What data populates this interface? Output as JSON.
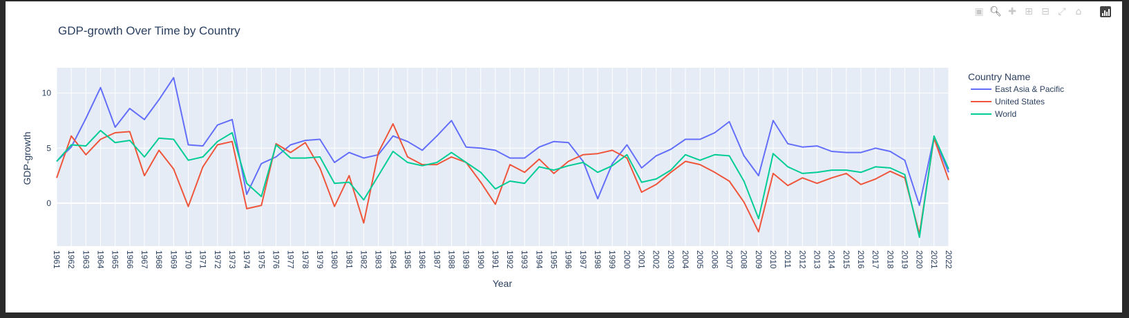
{
  "modebar": {
    "icons": [
      "camera-icon",
      "zoom-icon",
      "pan-icon",
      "zoom-in-icon",
      "zoom-out-icon",
      "autoscale-icon",
      "reset-icon",
      "plotly-logo-icon"
    ]
  },
  "chart_data": {
    "type": "line",
    "title": "GDP-growth Over Time by Country",
    "xlabel": "Year",
    "ylabel": "GDP-growth",
    "legend_title": "Country Name",
    "legend_position": "right",
    "grid": true,
    "ylim": [
      -3.9,
      12.3
    ],
    "yticks": [
      0,
      5,
      10
    ],
    "x": [
      1961,
      1962,
      1963,
      1964,
      1965,
      1966,
      1967,
      1968,
      1969,
      1970,
      1971,
      1972,
      1973,
      1974,
      1975,
      1976,
      1977,
      1978,
      1979,
      1980,
      1981,
      1982,
      1983,
      1984,
      1985,
      1986,
      1987,
      1988,
      1989,
      1990,
      1991,
      1992,
      1993,
      1994,
      1995,
      1996,
      1997,
      1998,
      1999,
      2000,
      2001,
      2002,
      2003,
      2004,
      2005,
      2006,
      2007,
      2008,
      2009,
      2010,
      2011,
      2012,
      2013,
      2014,
      2015,
      2016,
      2017,
      2018,
      2019,
      2020,
      2021,
      2022
    ],
    "series": [
      {
        "name": "East Asia & Pacific",
        "color": "#636efa",
        "values": [
          3.8,
          5.1,
          7.7,
          10.5,
          6.9,
          8.6,
          7.6,
          9.4,
          11.4,
          5.3,
          5.2,
          7.1,
          7.6,
          0.8,
          3.6,
          4.2,
          5.3,
          5.7,
          5.8,
          3.7,
          4.6,
          4.1,
          4.4,
          6.1,
          5.6,
          4.8,
          6.1,
          7.5,
          5.1,
          5.0,
          4.8,
          4.1,
          4.1,
          5.1,
          5.6,
          5.5,
          3.8,
          0.4,
          3.6,
          5.3,
          3.2,
          4.3,
          4.9,
          5.8,
          5.8,
          6.4,
          7.4,
          4.3,
          2.5,
          7.5,
          5.4,
          5.1,
          5.2,
          4.7,
          4.6,
          4.6,
          5.0,
          4.7,
          3.9,
          -0.2,
          6.0,
          2.8
        ]
      },
      {
        "name": "United States",
        "color": "#ef553b",
        "values": [
          2.3,
          6.1,
          4.4,
          5.8,
          6.4,
          6.5,
          2.5,
          4.8,
          3.1,
          -0.3,
          3.3,
          5.3,
          5.6,
          -0.5,
          -0.2,
          5.4,
          4.6,
          5.5,
          3.2,
          -0.3,
          2.5,
          -1.8,
          4.6,
          7.2,
          4.2,
          3.5,
          3.5,
          4.2,
          3.7,
          1.9,
          -0.1,
          3.5,
          2.8,
          4.0,
          2.7,
          3.8,
          4.4,
          4.5,
          4.8,
          4.1,
          1.0,
          1.7,
          2.8,
          3.8,
          3.5,
          2.8,
          2.0,
          0.1,
          -2.6,
          2.7,
          1.6,
          2.3,
          1.8,
          2.3,
          2.7,
          1.7,
          2.2,
          2.9,
          2.3,
          -2.8,
          5.9,
          2.1
        ]
      },
      {
        "name": "World",
        "color": "#00cc96",
        "values": [
          3.8,
          5.3,
          5.2,
          6.6,
          5.5,
          5.7,
          4.2,
          5.9,
          5.8,
          3.9,
          4.2,
          5.6,
          6.4,
          1.8,
          0.6,
          5.3,
          4.1,
          4.1,
          4.2,
          1.8,
          1.9,
          0.3,
          2.5,
          4.7,
          3.7,
          3.4,
          3.7,
          4.6,
          3.7,
          2.8,
          1.3,
          2.0,
          1.8,
          3.3,
          3.0,
          3.4,
          3.7,
          2.8,
          3.4,
          4.4,
          1.9,
          2.2,
          3.0,
          4.4,
          3.9,
          4.4,
          4.3,
          2.0,
          -1.4,
          4.5,
          3.3,
          2.7,
          2.8,
          3.0,
          3.0,
          2.8,
          3.3,
          3.2,
          2.6,
          -3.1,
          6.1,
          3.1
        ]
      }
    ]
  }
}
